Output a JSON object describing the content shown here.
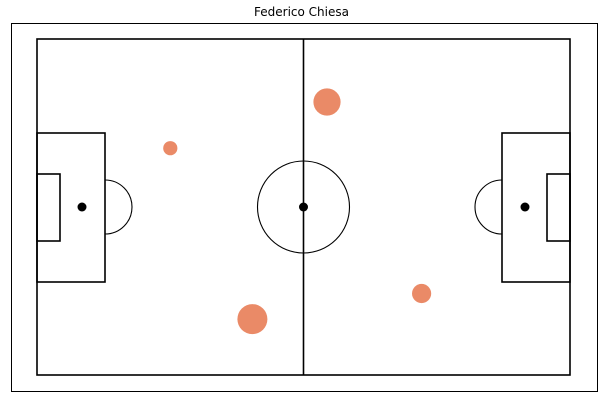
{
  "chart_data": {
    "type": "scatter",
    "title": "Federico Chiesa",
    "xlim": [
      0,
      120
    ],
    "ylim": [
      0,
      80
    ],
    "marker_color": "#E8805A",
    "points": [
      {
        "x": 65.3,
        "y": 65.0,
        "size": 38
      },
      {
        "x": 30.0,
        "y": 54.0,
        "size": 20
      },
      {
        "x": 86.6,
        "y": 19.4,
        "size": 27
      },
      {
        "x": 48.5,
        "y": 13.3,
        "size": 42
      }
    ]
  }
}
